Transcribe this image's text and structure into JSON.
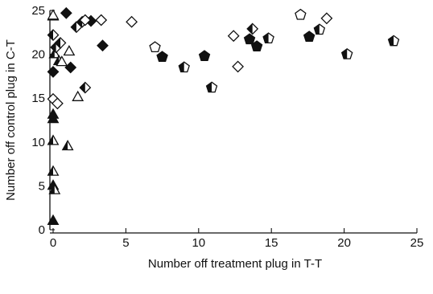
{
  "chart_data": {
    "type": "scatter",
    "xlabel": "Number off treatment plug in T-T",
    "ylabel": "Number off control plug in C-T",
    "xlim": [
      0,
      25
    ],
    "ylim": [
      0,
      25
    ],
    "xticks": [
      0,
      5,
      10,
      15,
      20,
      25
    ],
    "yticks": [
      0,
      5,
      10,
      15,
      20,
      25
    ],
    "grid": false,
    "legend": "none",
    "series": [
      {
        "marker": "triangle",
        "fill": "filled",
        "points": [
          [
            0.0,
            1.0
          ],
          [
            0.0,
            5.0
          ],
          [
            0.0,
            12.6
          ],
          [
            0.0,
            13.1
          ],
          [
            0.0,
            24.3
          ]
        ]
      },
      {
        "marker": "triangle",
        "fill": "half",
        "points": [
          [
            0.0,
            6.6
          ],
          [
            0.0,
            10.1
          ],
          [
            0.1,
            4.5
          ],
          [
            0.1,
            20.0
          ],
          [
            0.4,
            19.2
          ],
          [
            1.0,
            9.5
          ]
        ]
      },
      {
        "marker": "triangle",
        "fill": "open",
        "points": [
          [
            0.0,
            24.4
          ],
          [
            0.6,
            19.1
          ],
          [
            1.1,
            20.3
          ],
          [
            1.7,
            15.1
          ]
        ]
      },
      {
        "marker": "diamond",
        "fill": "filled",
        "points": [
          [
            0.0,
            18.0
          ],
          [
            0.9,
            24.7
          ],
          [
            1.2,
            18.5
          ],
          [
            2.6,
            23.8
          ],
          [
            3.4,
            21.0
          ]
        ]
      },
      {
        "marker": "diamond",
        "fill": "half",
        "points": [
          [
            0.0,
            22.2
          ],
          [
            0.2,
            20.8
          ],
          [
            0.5,
            21.3
          ],
          [
            1.6,
            23.1
          ],
          [
            2.2,
            16.2
          ],
          [
            2.0,
            23.7
          ],
          [
            13.7,
            22.9
          ]
        ]
      },
      {
        "marker": "diamond",
        "fill": "open",
        "points": [
          [
            0.0,
            14.9
          ],
          [
            0.3,
            14.4
          ],
          [
            2.2,
            23.9
          ],
          [
            3.3,
            23.9
          ],
          [
            5.4,
            23.7
          ],
          [
            12.4,
            22.1
          ],
          [
            12.7,
            18.6
          ],
          [
            18.8,
            24.1
          ]
        ]
      },
      {
        "marker": "pentagon",
        "fill": "filled",
        "points": [
          [
            7.5,
            19.7
          ],
          [
            10.4,
            19.8
          ],
          [
            13.5,
            21.7
          ],
          [
            14.0,
            20.9
          ],
          [
            17.6,
            22.0
          ]
        ]
      },
      {
        "marker": "pentagon",
        "fill": "half",
        "points": [
          [
            9.0,
            18.5
          ],
          [
            10.9,
            16.2
          ],
          [
            14.8,
            21.8
          ],
          [
            18.3,
            22.8
          ],
          [
            20.2,
            20.0
          ],
          [
            23.4,
            21.5
          ]
        ]
      },
      {
        "marker": "pentagon",
        "fill": "open",
        "points": [
          [
            7.0,
            20.8
          ],
          [
            17.0,
            24.5
          ]
        ]
      }
    ]
  }
}
